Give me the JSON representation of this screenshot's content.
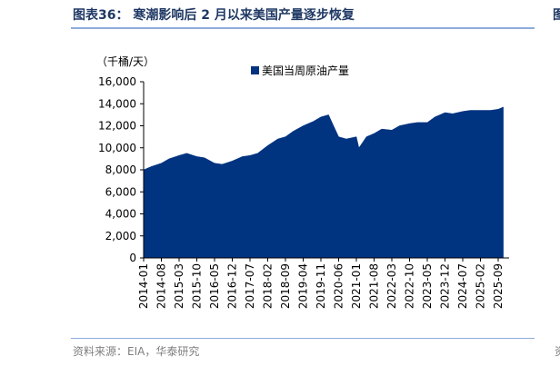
{
  "header": {
    "title": "图表36：  寒潮影响后 2 月以来美国产量逐步恢复",
    "right_glyph": "图"
  },
  "footer": {
    "source": "资料来源：EIA，华泰研究",
    "right_glyph": "资"
  },
  "chart_data": {
    "type": "area",
    "unit": "（千桶/天）",
    "legend": [
      {
        "name": "美国当周原油产量",
        "color": "#003380"
      }
    ],
    "legend_placement": "top",
    "ylim": [
      0,
      16000
    ],
    "y_ticks": [
      "0",
      "2,000",
      "4,000",
      "6,000",
      "8,000",
      "10,000",
      "12,000",
      "14,000",
      "16,000"
    ],
    "x_ticks": [
      "2014-01",
      "2014-08",
      "2015-03",
      "2015-10",
      "2016-05",
      "2016-12",
      "2017-07",
      "2018-02",
      "2018-09",
      "2019-04",
      "2019-11",
      "2020-06",
      "2021-01",
      "2021-08",
      "2022-03",
      "2022-10",
      "2023-05",
      "2023-12",
      "2024-07",
      "2025-02",
      "2025-09"
    ],
    "grid": false,
    "series": [
      {
        "name": "美国当周原油产量",
        "color": "#003380",
        "x": [
          "2014-01",
          "2014-04",
          "2014-08",
          "2014-11",
          "2015-03",
          "2015-06",
          "2015-10",
          "2016-01",
          "2016-05",
          "2016-08",
          "2016-12",
          "2017-04",
          "2017-07",
          "2017-10",
          "2018-02",
          "2018-06",
          "2018-09",
          "2018-12",
          "2019-04",
          "2019-08",
          "2019-11",
          "2020-02",
          "2020-04",
          "2020-06",
          "2020-09",
          "2021-01",
          "2021-02",
          "2021-05",
          "2021-08",
          "2021-11",
          "2022-03",
          "2022-06",
          "2022-10",
          "2023-01",
          "2023-05",
          "2023-08",
          "2023-12",
          "2024-03",
          "2024-07",
          "2024-10",
          "2025-02",
          "2025-06",
          "2025-09",
          "2025-11"
        ],
        "values": [
          8000,
          8300,
          8600,
          9000,
          9300,
          9500,
          9200,
          9100,
          8600,
          8500,
          8800,
          9200,
          9300,
          9500,
          10200,
          10800,
          11000,
          11500,
          12000,
          12400,
          12800,
          13000,
          12000,
          11000,
          10800,
          11000,
          10000,
          11000,
          11300,
          11700,
          11600,
          12000,
          12200,
          12300,
          12300,
          12800,
          13200,
          13100,
          13300,
          13400,
          13400,
          13400,
          13500,
          13700
        ]
      }
    ]
  }
}
